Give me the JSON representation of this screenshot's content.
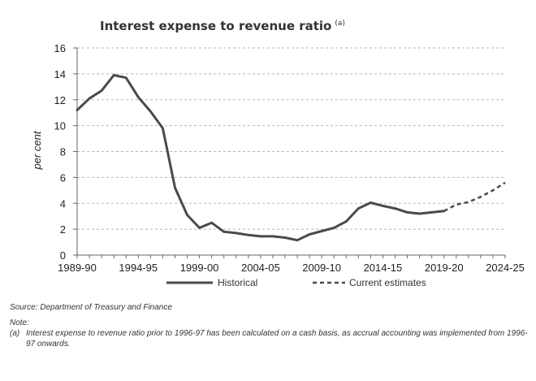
{
  "chart_data": {
    "type": "line",
    "title": "Interest expense to revenue ratio",
    "title_superscript": "(a)",
    "xlabel": "",
    "ylabel": "per cent",
    "ylim": [
      0,
      16
    ],
    "yticks": [
      "0",
      "2",
      "4",
      "6",
      "8",
      "10",
      "12",
      "14",
      "16"
    ],
    "xlim": [
      0,
      35
    ],
    "xtick_positions": [
      0,
      5,
      10,
      15,
      20,
      25,
      30,
      35
    ],
    "xtick_labels": [
      "1989-90",
      "1994-95",
      "1999-00",
      "2004-05",
      "2009-10",
      "2014-15",
      "2019-20",
      "2024-25"
    ],
    "grid": true,
    "legend": "bottom",
    "series": [
      {
        "name": "Historical",
        "style": "solid",
        "color": "#4a4a4a",
        "x": [
          0,
          1,
          2,
          3,
          4,
          5,
          6,
          7,
          8,
          9,
          10,
          11,
          12,
          13,
          14,
          15,
          16,
          17,
          18,
          19,
          20,
          21,
          22,
          23,
          24,
          25,
          26,
          27,
          28,
          29,
          30
        ],
        "values": [
          11.2,
          12.1,
          12.7,
          13.9,
          13.7,
          12.2,
          11.1,
          9.8,
          5.2,
          3.1,
          2.1,
          2.5,
          1.8,
          1.7,
          1.55,
          1.45,
          1.45,
          1.35,
          1.15,
          1.6,
          1.85,
          2.1,
          2.6,
          3.6,
          4.05,
          3.8,
          3.6,
          3.3,
          3.2,
          3.3,
          3.4
        ]
      },
      {
        "name": "Current estimates",
        "style": "dashed",
        "color": "#4a4a4a",
        "x": [
          30,
          31,
          32,
          33,
          34,
          35
        ],
        "values": [
          3.4,
          3.9,
          4.1,
          4.5,
          5.0,
          5.6
        ]
      }
    ]
  },
  "notes": {
    "source": "Source: Department of Treasury and Finance",
    "note_label": "Note:",
    "note_mark": "(a)",
    "note_text": "Interest expense to revenue ratio prior to 1996-97 has been calculated on a cash basis, as accrual accounting was implemented from 1996-97 onwards."
  }
}
